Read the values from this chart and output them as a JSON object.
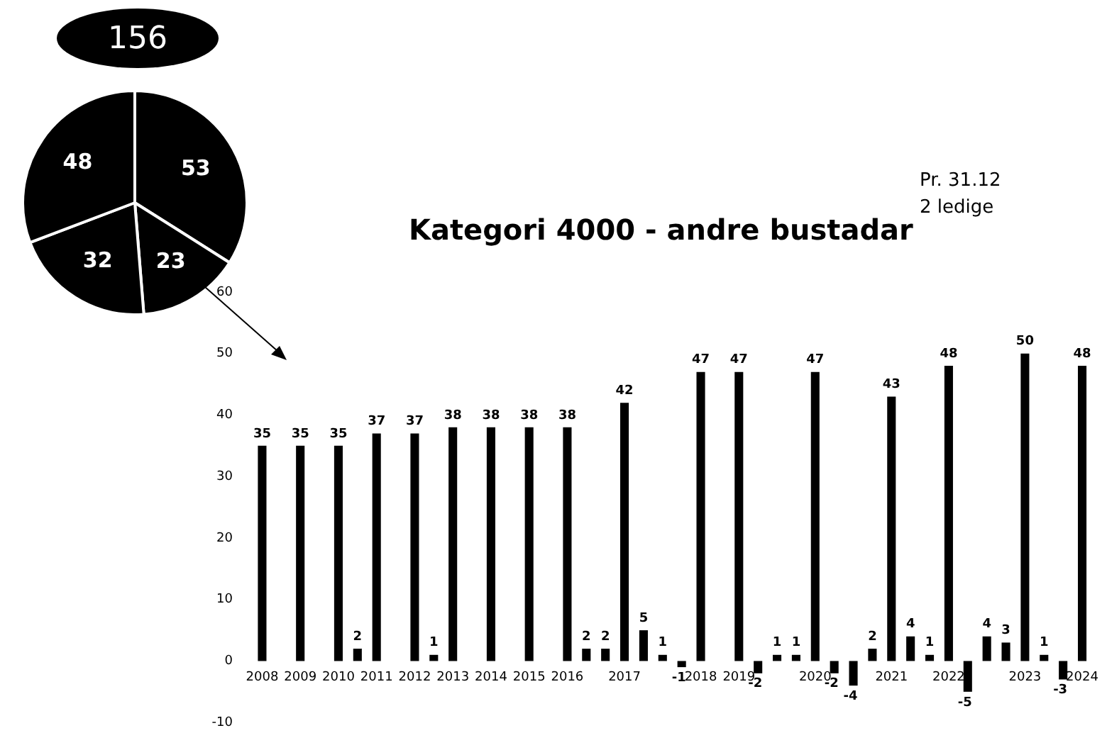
{
  "chart_data": [
    {
      "type": "pie",
      "categories": [
        null,
        null,
        null,
        null
      ],
      "values": [
        53,
        23,
        32,
        48
      ],
      "colors": [
        "#000000",
        "#000000",
        "#000000",
        "#000000"
      ],
      "data_labels": true,
      "annotations": [
        "156"
      ]
    },
    {
      "type": "bar",
      "title": "Kategori 4000 - andre bustadar",
      "annotations": [
        "Pr. 31.12",
        "2 ledige"
      ],
      "categories": [
        "2008",
        null,
        "2009",
        null,
        "2010",
        null,
        "2011",
        null,
        "2012",
        null,
        "2013",
        null,
        "2014",
        null,
        "2015",
        null,
        "2016",
        null,
        null,
        "2017",
        null,
        null,
        null,
        "2018",
        null,
        "2019",
        null,
        null,
        null,
        "2020",
        null,
        null,
        null,
        "2021",
        null,
        null,
        "2022",
        null,
        null,
        null,
        "2023",
        null,
        null,
        "2024"
      ],
      "values": [
        35,
        null,
        35,
        null,
        35,
        2,
        37,
        null,
        37,
        1,
        38,
        null,
        38,
        null,
        38,
        null,
        38,
        2,
        2,
        42,
        5,
        1,
        -1,
        47,
        null,
        47,
        -2,
        1,
        1,
        47,
        -2,
        -4,
        2,
        43,
        4,
        1,
        48,
        -5,
        4,
        3,
        50,
        1,
        -3,
        48
      ],
      "color": "#000000",
      "ylim": [
        -10,
        60
      ],
      "yticks": [
        -10,
        0,
        10,
        20,
        30,
        40,
        50,
        60
      ],
      "grid": false,
      "data_labels": true
    }
  ]
}
